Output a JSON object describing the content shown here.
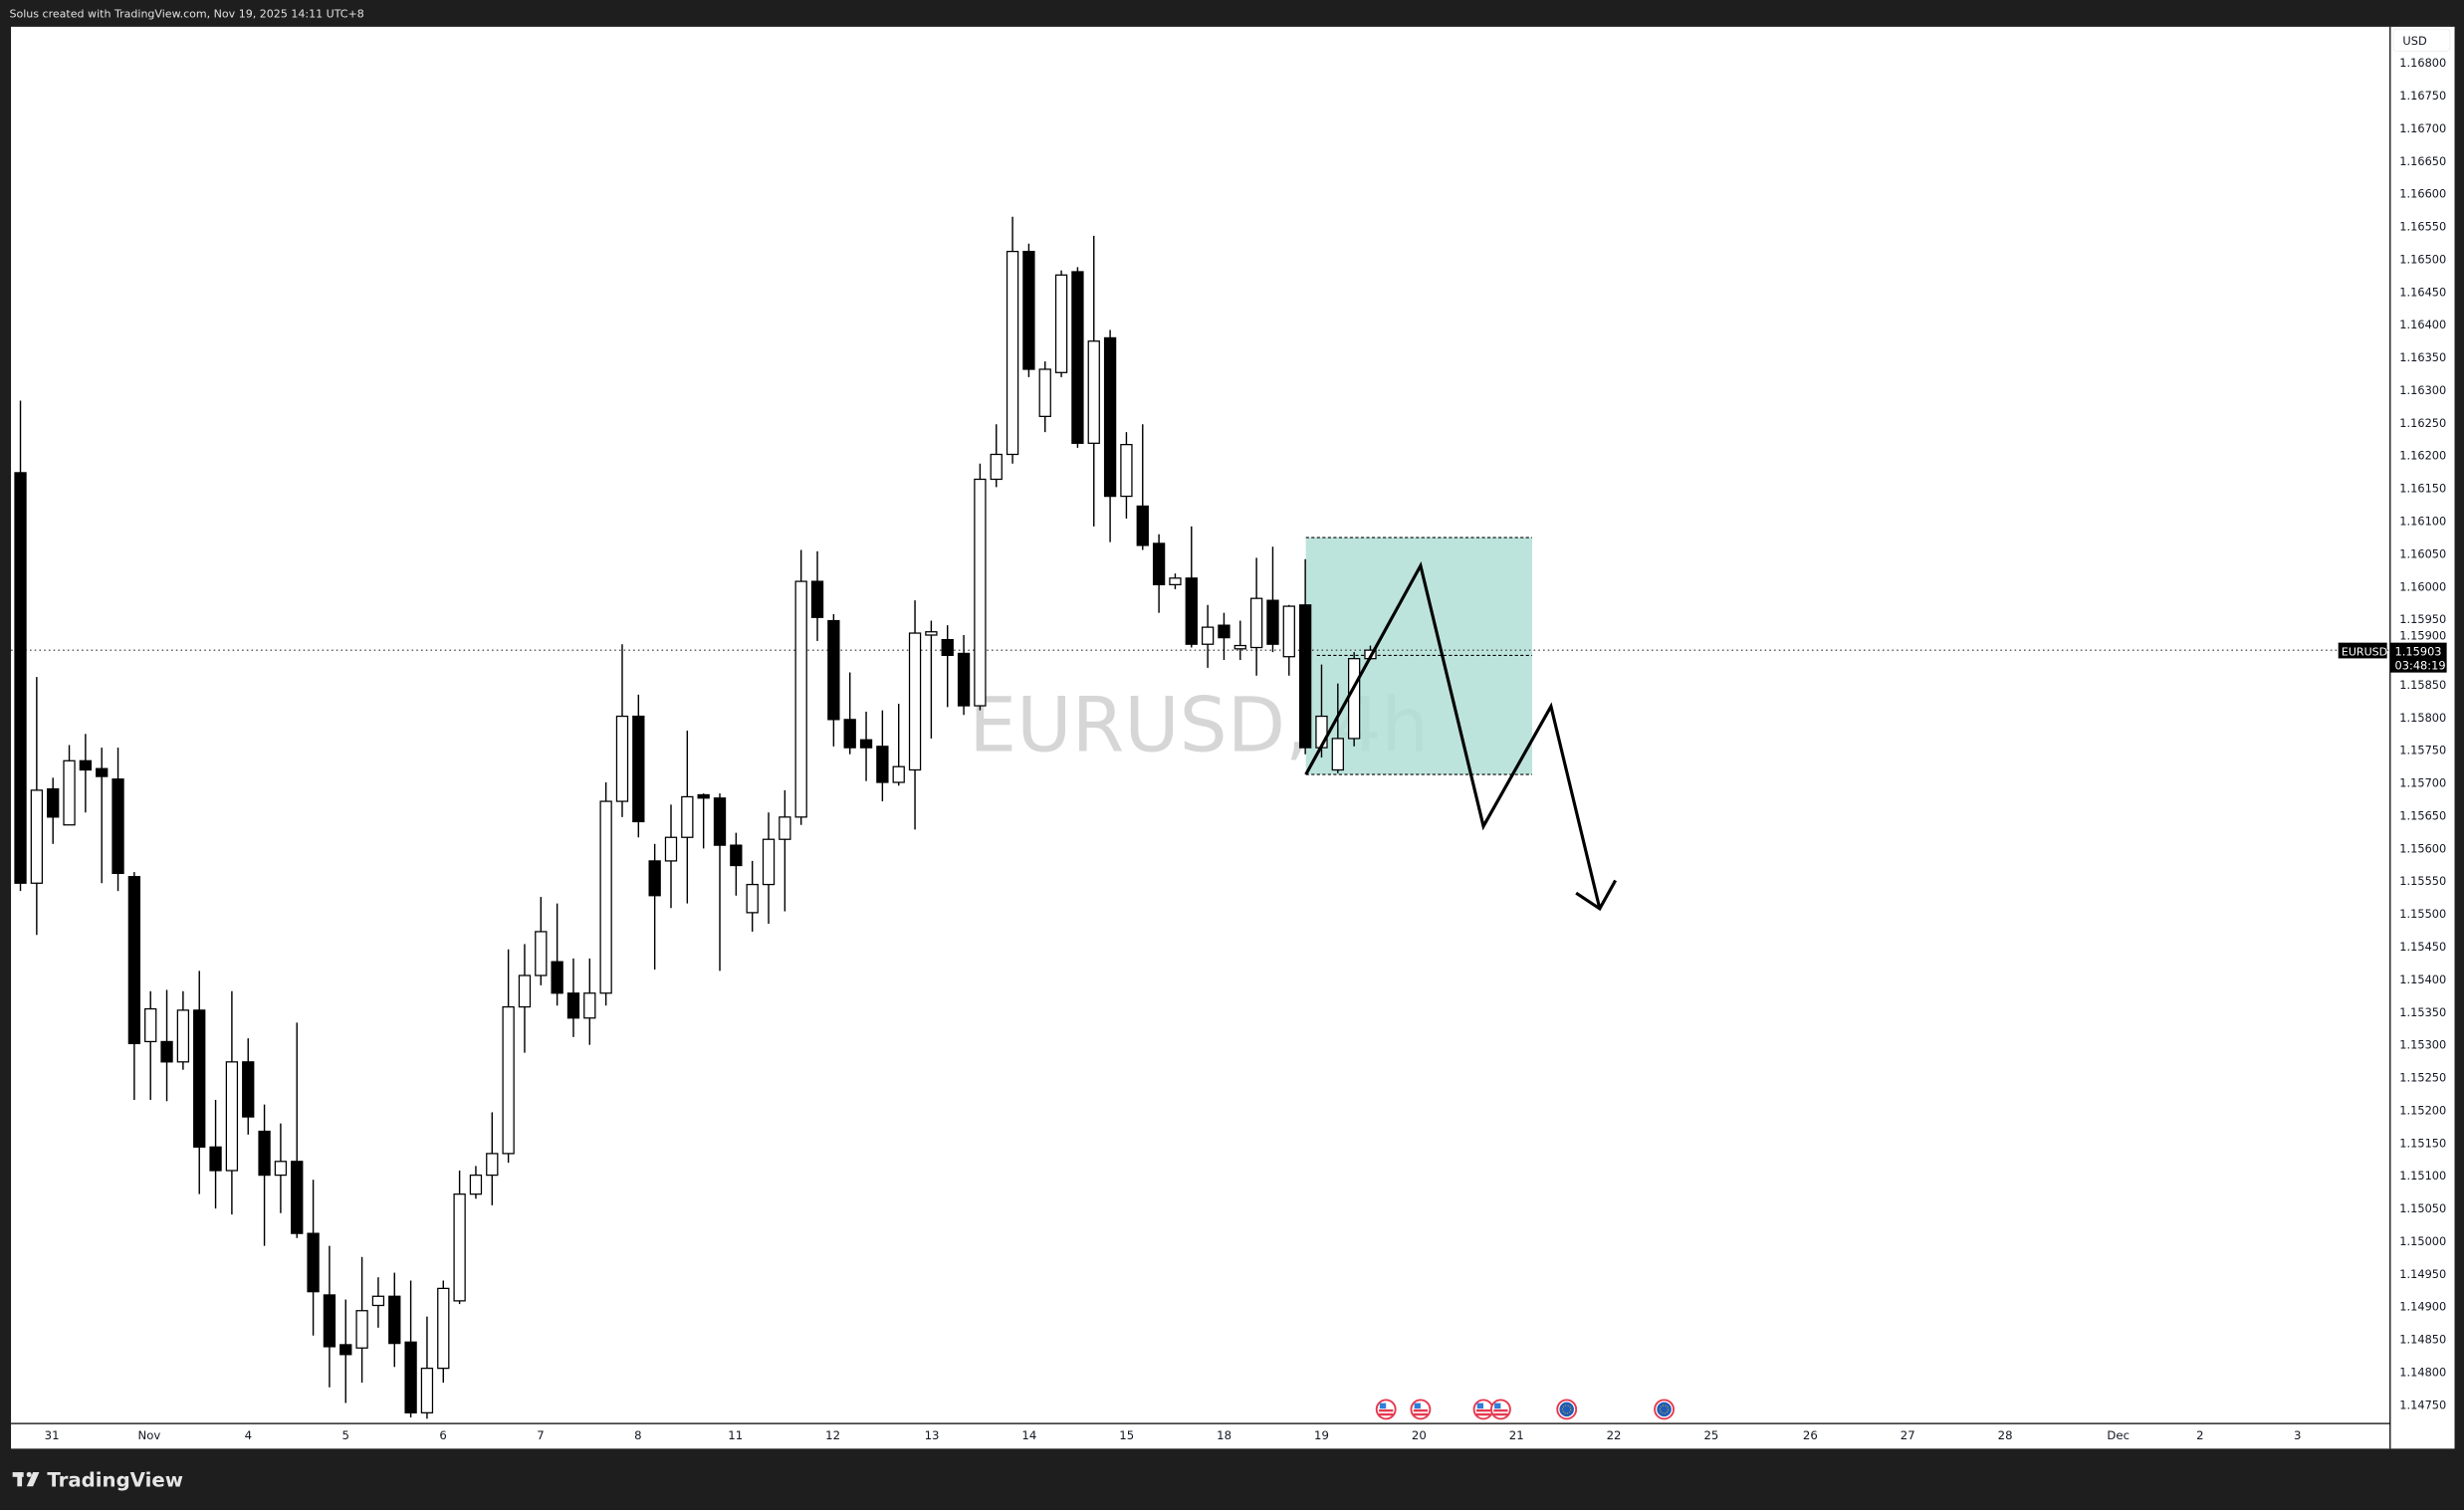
{
  "header": {
    "caption": "Solus created with TradingView.com, Nov 19, 2025 14:11 UTC+8"
  },
  "footer": {
    "logo_text": "TradingView"
  },
  "watermark": "EURUSD, 4h",
  "price_axis": {
    "currency": "USD",
    "labels": [
      "1.16800",
      "1.16750",
      "1.16700",
      "1.16650",
      "1.16600",
      "1.16550",
      "1.16500",
      "1.16450",
      "1.16400",
      "1.16350",
      "1.16300",
      "1.16250",
      "1.16200",
      "1.16150",
      "1.16100",
      "1.16050",
      "1.16000",
      "1.15950",
      "1.15900",
      "1.15850",
      "1.15800",
      "1.15750",
      "1.15700",
      "1.15650",
      "1.15600",
      "1.15550",
      "1.15500",
      "1.15450",
      "1.15400",
      "1.15350",
      "1.15300",
      "1.15250",
      "1.15200",
      "1.15150",
      "1.15100",
      "1.15050",
      "1.15000",
      "1.14950",
      "1.14900",
      "1.14850",
      "1.14800",
      "1.14750"
    ],
    "symbol_tag": "EURUSD",
    "last_price": "1.15903",
    "countdown": "03:48:19"
  },
  "time_axis": {
    "labels": [
      "31",
      "Nov",
      "4",
      "5",
      "6",
      "7",
      "8",
      "11",
      "12",
      "13",
      "14",
      "15",
      "18",
      "19",
      "20",
      "21",
      "22",
      "25",
      "26",
      "27",
      "28",
      "Dec",
      "2",
      "3"
    ]
  },
  "events": [
    {
      "flag": "us-flag-icon"
    },
    {
      "flag": "us-flag-icon"
    },
    {
      "flag": "us-flag-icon"
    },
    {
      "flag": "us-flag-icon"
    },
    {
      "flag": "eu-flag-icon"
    },
    {
      "flag": "eu-flag-icon"
    }
  ],
  "colors": {
    "bull_body": "#ffffff",
    "bear_body": "#000000",
    "zone_fill": "#b2dfd6",
    "background": "#ffffff",
    "frame": "#1e1e1e"
  },
  "drawings": {
    "zone": {
      "top": 1.16075,
      "bottom": 1.15713,
      "mid": 1.15895
    },
    "projection_prices": [
      1.15713,
      1.16032,
      1.15634,
      1.15817,
      1.15508
    ]
  },
  "chart_data": {
    "type": "candlestick",
    "symbol": "EURUSD",
    "timeframe": "4h",
    "ylim": [
      1.1475,
      1.168
    ],
    "candles": [
      [
        1.16174,
        1.16284,
        1.15535,
        1.15547
      ],
      [
        1.15547,
        1.15862,
        1.15468,
        1.15689
      ],
      [
        1.15691,
        1.15708,
        1.15607,
        1.15648
      ],
      [
        1.15636,
        1.15758,
        1.15636,
        1.15734
      ],
      [
        1.15734,
        1.15775,
        1.15655,
        1.1572
      ],
      [
        1.15722,
        1.15754,
        1.15547,
        1.1571
      ],
      [
        1.15706,
        1.15754,
        1.15535,
        1.15562
      ],
      [
        1.15557,
        1.15564,
        1.15216,
        1.15302
      ],
      [
        1.15305,
        1.15382,
        1.15216,
        1.15355
      ],
      [
        1.15305,
        1.15384,
        1.15214,
        1.15274
      ],
      [
        1.15274,
        1.15382,
        1.15262,
        1.15353
      ],
      [
        1.15353,
        1.15413,
        1.15072,
        1.15144
      ],
      [
        1.15144,
        1.15216,
        1.1505,
        1.15108
      ],
      [
        1.15108,
        1.15382,
        1.15041,
        1.15274
      ],
      [
        1.15274,
        1.1531,
        1.15163,
        1.1519
      ],
      [
        1.15168,
        1.15209,
        1.14993,
        1.15101
      ],
      [
        1.15101,
        1.1518,
        1.15043,
        1.15122
      ],
      [
        1.15122,
        1.15334,
        1.15005,
        1.15012
      ],
      [
        1.15012,
        1.15094,
        1.14856,
        1.14923
      ],
      [
        1.14918,
        1.14993,
        1.14777,
        1.14839
      ],
      [
        1.14842,
        1.14911,
        1.14753,
        1.14827
      ],
      [
        1.14837,
        1.14976,
        1.14784,
        1.14894
      ],
      [
        1.14902,
        1.14945,
        1.14868,
        1.14916
      ],
      [
        1.14916,
        1.14952,
        1.14808,
        1.14844
      ],
      [
        1.14846,
        1.1494,
        1.14731,
        1.14738
      ],
      [
        1.14738,
        1.14885,
        1.14729,
        1.14806
      ],
      [
        1.14806,
        1.1494,
        1.14784,
        1.14928
      ],
      [
        1.14909,
        1.15108,
        1.14904,
        1.15072
      ],
      [
        1.15072,
        1.15115,
        1.15065,
        1.15101
      ],
      [
        1.15101,
        1.15197,
        1.15055,
        1.15134
      ],
      [
        1.15134,
        1.15446,
        1.1512,
        1.15358
      ],
      [
        1.15358,
        1.15454,
        1.15288,
        1.15406
      ],
      [
        1.15406,
        1.15526,
        1.15391,
        1.15473
      ],
      [
        1.15427,
        1.15516,
        1.1536,
        1.15379
      ],
      [
        1.15379,
        1.15432,
        1.15312,
        1.15341
      ],
      [
        1.15341,
        1.15432,
        1.153,
        1.15379
      ],
      [
        1.15379,
        1.15701,
        1.1536,
        1.15672
      ],
      [
        1.15672,
        1.15912,
        1.15648,
        1.15802
      ],
      [
        1.15802,
        1.15835,
        1.15617,
        1.15641
      ],
      [
        1.15581,
        1.15607,
        1.15415,
        1.15528
      ],
      [
        1.15581,
        1.15667,
        1.15509,
        1.15617
      ],
      [
        1.15617,
        1.1578,
        1.15516,
        1.15679
      ],
      [
        1.15682,
        1.15684,
        1.156,
        1.15677
      ],
      [
        1.15677,
        1.15684,
        1.15413,
        1.15605
      ],
      [
        1.15605,
        1.15624,
        1.15528,
        1.15574
      ],
      [
        1.15502,
        1.15581,
        1.15473,
        1.15545
      ],
      [
        1.15545,
        1.15655,
        1.15485,
        1.15614
      ],
      [
        1.15614,
        1.15689,
        1.15504,
        1.15648
      ],
      [
        1.15648,
        1.16056,
        1.15636,
        1.16008
      ],
      [
        1.16008,
        1.16054,
        1.15917,
        1.15953
      ],
      [
        1.15948,
        1.15958,
        1.15756,
        1.15797
      ],
      [
        1.15797,
        1.15869,
        1.15744,
        1.15754
      ],
      [
        1.15766,
        1.15809,
        1.15703,
        1.15754
      ],
      [
        1.15756,
        1.15811,
        1.15672,
        1.15701
      ],
      [
        1.15701,
        1.15821,
        1.15696,
        1.15725
      ],
      [
        1.1572,
        1.15979,
        1.15629,
        1.15929
      ],
      [
        1.15926,
        1.15948,
        1.15768,
        1.15931
      ],
      [
        1.15919,
        1.15941,
        1.15816,
        1.15895
      ],
      [
        1.15898,
        1.15926,
        1.15804,
        1.15818
      ],
      [
        1.15818,
        1.16188,
        1.15811,
        1.16164
      ],
      [
        1.16164,
        1.16248,
        1.16152,
        1.16202
      ],
      [
        1.16202,
        1.16565,
        1.16188,
        1.16512
      ],
      [
        1.16512,
        1.16524,
        1.1632,
        1.16332
      ],
      [
        1.1626,
        1.16344,
        1.16236,
        1.16332
      ],
      [
        1.16327,
        1.16483,
        1.1632,
        1.16476
      ],
      [
        1.16481,
        1.16488,
        1.16212,
        1.16219
      ],
      [
        1.16219,
        1.16536,
        1.16092,
        1.16375
      ],
      [
        1.1638,
        1.16392,
        1.16068,
        1.16138
      ],
      [
        1.16138,
        1.16236,
        1.16104,
        1.16217
      ],
      [
        1.16123,
        1.16248,
        1.16056,
        1.16063
      ],
      [
        1.16066,
        1.1608,
        1.1596,
        1.16003
      ],
      [
        1.16003,
        1.1602,
        1.15996,
        1.16013
      ],
      [
        1.16013,
        1.16092,
        1.15907,
        1.15912
      ],
      [
        1.15912,
        1.15972,
        1.15876,
        1.15938
      ],
      [
        1.15941,
        1.1596,
        1.15888,
        1.15922
      ],
      [
        1.15905,
        1.15948,
        1.15888,
        1.1591
      ],
      [
        1.15907,
        1.16044,
        1.15864,
        1.15982
      ],
      [
        1.15979,
        1.16061,
        1.159,
        1.15912
      ],
      [
        1.15893,
        1.15972,
        1.15864,
        1.1597
      ],
      [
        1.15972,
        1.16042,
        1.15744,
        1.15754
      ],
      [
        1.15754,
        1.15881,
        1.15739,
        1.15802
      ],
      [
        1.1572,
        1.15852,
        1.15715,
        1.15768
      ],
      [
        1.15768,
        1.159,
        1.15756,
        1.1589
      ],
      [
        1.1589,
        1.1591,
        1.15888,
        1.15903
      ]
    ]
  }
}
